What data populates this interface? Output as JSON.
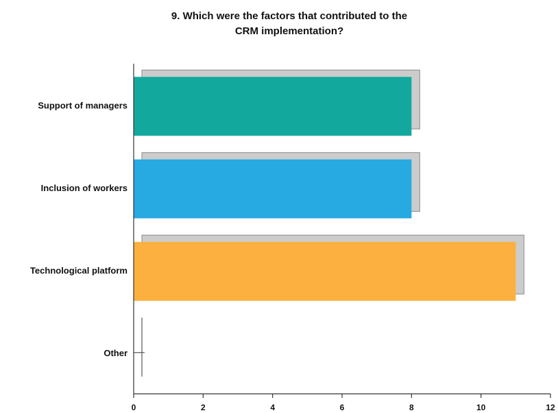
{
  "chart_data": {
    "type": "bar",
    "orientation": "horizontal",
    "title": "9. Which were the factors that contributed to the CRM implementation?",
    "title_lines": [
      "9. Which were the factors that contributed to the",
      "CRM implementation?"
    ],
    "categories": [
      "Support of managers",
      "Inclusion of workers",
      "Technological platform",
      "Other"
    ],
    "values": [
      8,
      8,
      11,
      0
    ],
    "colors": [
      "#13a89e",
      "#27a9e1",
      "#fbb040",
      "#cccccc"
    ],
    "shadow_color": "#cccccc",
    "xlim": [
      0,
      12
    ],
    "xticks": [
      0,
      2,
      4,
      6,
      8,
      10,
      12
    ],
    "tick_labels": [
      "0",
      "2",
      "4",
      "6",
      "8",
      "10",
      "12"
    ],
    "grid": false,
    "legend": "none"
  }
}
